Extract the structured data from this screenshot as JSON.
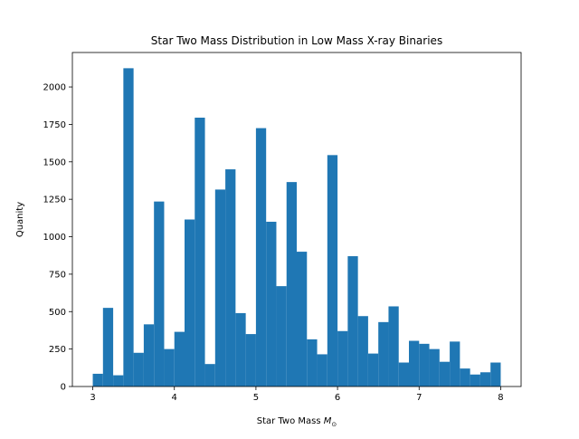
{
  "chart_data": {
    "type": "bar",
    "title": "Star Two Mass Distribution in Low Mass X-ray Binaries",
    "xlabel_text": "Star Two Mass ",
    "xlabel_math": "M",
    "xlabel_sub": "⊙",
    "ylabel": "Quanity",
    "xlim": [
      2.75,
      8.25
    ],
    "ylim": [
      0,
      2230
    ],
    "xticks": [
      3,
      4,
      5,
      6,
      7,
      8
    ],
    "yticks": [
      0,
      250,
      500,
      750,
      1000,
      1250,
      1500,
      1750,
      2000
    ],
    "bin_start": 3.0,
    "bin_end": 8.0,
    "bar_color": "#1f77b4",
    "values": [
      85,
      525,
      75,
      2125,
      225,
      415,
      1235,
      250,
      365,
      1115,
      1795,
      150,
      1315,
      1450,
      490,
      350,
      1725,
      1100,
      670,
      1365,
      900,
      315,
      215,
      1545,
      370,
      870,
      470,
      220,
      430,
      535,
      160,
      305,
      285,
      250,
      165,
      300,
      120,
      80,
      95,
      160
    ],
    "grid": false,
    "legend": "none"
  }
}
